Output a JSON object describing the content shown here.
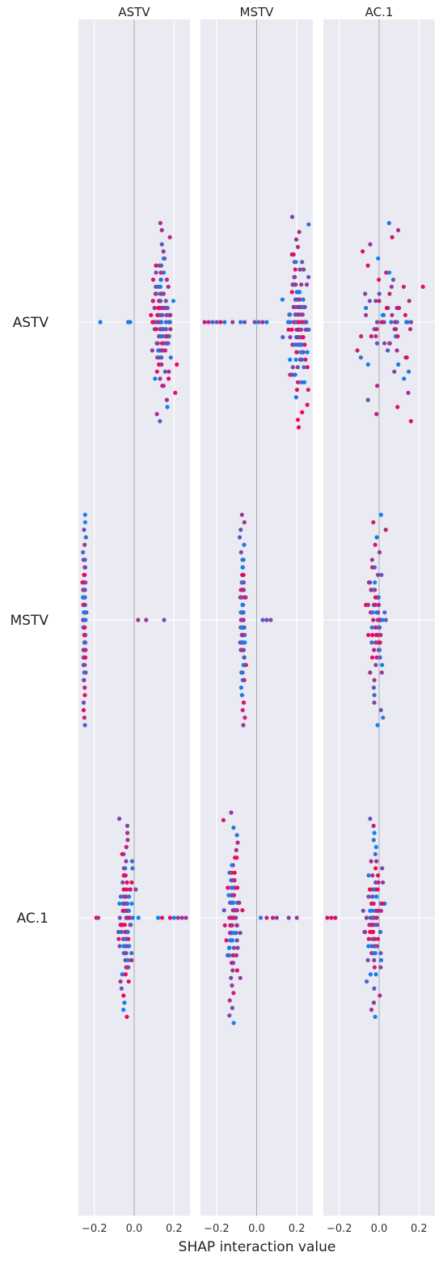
{
  "chart_data": {
    "type": "scatter",
    "subtype": "shap-interaction-beeswarm-matrix",
    "xlabel": "SHAP interaction value",
    "panels": [
      "ASTV",
      "MSTV",
      "AC.1"
    ],
    "rows": [
      "ASTV",
      "MSTV",
      "AC.1"
    ],
    "xlim": [
      -0.28,
      0.28
    ],
    "x_ticks": [
      -0.2,
      0.0,
      0.2
    ],
    "x_tick_labels": [
      "−0.2",
      "0.0",
      "0.2"
    ],
    "grid": true,
    "background": "#eaeaf2",
    "color_low": "#008bfb",
    "color_high": "#ff0052",
    "cells": [
      {
        "row": "ASTV",
        "panel": "ASTV",
        "x_center": 0.14,
        "spread": 0.07,
        "max_halfwidth": 20,
        "vertical_range": 0.32,
        "outliers": [
          -0.17,
          -0.03,
          -0.02
        ]
      },
      {
        "row": "ASTV",
        "panel": "MSTV",
        "x_center": 0.21,
        "spread": 0.06,
        "max_halfwidth": 20,
        "vertical_range": 0.34,
        "outliers": [
          -0.26,
          -0.24,
          -0.22,
          -0.2,
          -0.18,
          -0.16,
          -0.12,
          -0.08,
          -0.06,
          -0.01,
          0.01,
          0.03,
          0.05
        ]
      },
      {
        "row": "ASTV",
        "panel": "AC.1",
        "x_center": 0.04,
        "spread": 0.18,
        "max_halfwidth": 10,
        "vertical_range": 0.32,
        "outliers": [
          -0.01,
          0.02,
          0.06,
          0.08,
          0.09
        ]
      },
      {
        "row": "MSTV",
        "panel": "ASTV",
        "x_center": -0.25,
        "spread": 0.01,
        "max_halfwidth": 14,
        "vertical_range": 0.34,
        "outliers": [
          0.02,
          0.06,
          0.15
        ]
      },
      {
        "row": "MSTV",
        "panel": "MSTV",
        "x_center": -0.07,
        "spread": 0.02,
        "max_halfwidth": 12,
        "vertical_range": 0.34,
        "outliers": [
          0.03,
          0.05,
          0.07
        ]
      },
      {
        "row": "MSTV",
        "panel": "AC.1",
        "x_center": -0.02,
        "spread": 0.05,
        "max_halfwidth": 10,
        "vertical_range": 0.34,
        "outliers": []
      },
      {
        "row": "AC.1",
        "panel": "ASTV",
        "x_center": -0.04,
        "spread": 0.04,
        "max_halfwidth": 16,
        "vertical_range": 0.32,
        "outliers": [
          -0.19,
          -0.18,
          0.12,
          0.14,
          0.18,
          0.2,
          0.22,
          0.24,
          0.26
        ]
      },
      {
        "row": "AC.1",
        "panel": "MSTV",
        "x_center": -0.12,
        "spread": 0.04,
        "max_halfwidth": 14,
        "vertical_range": 0.34,
        "outliers": [
          0.02,
          0.05,
          0.08,
          0.1,
          0.16,
          0.2
        ]
      },
      {
        "row": "AC.1",
        "panel": "AC.1",
        "x_center": -0.03,
        "spread": 0.06,
        "max_halfwidth": 14,
        "vertical_range": 0.32,
        "outliers": [
          -0.26,
          -0.24,
          -0.22
        ]
      }
    ]
  }
}
